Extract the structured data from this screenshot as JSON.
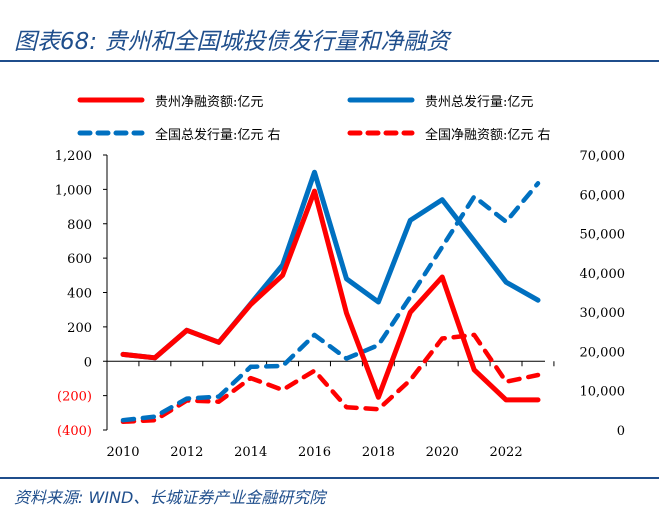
{
  "title": "图表68:  贵州和全国城投债发行量和净融资",
  "source": "资料来源: WIND、长城证券产业金融研究院",
  "chart_data": {
    "type": "line",
    "x": [
      2010,
      2011,
      2012,
      2013,
      2014,
      2015,
      2016,
      2017,
      2018,
      2019,
      2020,
      2021,
      2022,
      2023
    ],
    "xticks": [
      "2010",
      "2012",
      "2014",
      "2016",
      "2018",
      "2020",
      "2022"
    ],
    "left_ylim": [
      -400,
      1200
    ],
    "left_ticks": [
      "(400)",
      "(200)",
      "0",
      "200",
      "400",
      "600",
      "800",
      "1,000",
      "1,200"
    ],
    "right_ylim": [
      0,
      70000
    ],
    "right_ticks": [
      "0",
      "10,000",
      "20,000",
      "30,000",
      "40,000",
      "50,000",
      "60,000",
      "70,000"
    ],
    "legend_position": "top",
    "series": [
      {
        "name": "贵州净融资额:亿元",
        "axis": "left",
        "style": "solid",
        "color": "#ff0000",
        "values": [
          40,
          20,
          180,
          110,
          330,
          500,
          990,
          280,
          -210,
          285,
          490,
          -50,
          -225,
          -225
        ]
      },
      {
        "name": "贵州总发行量:亿元",
        "axis": "left",
        "style": "solid",
        "color": "#0070c0",
        "values": [
          40,
          20,
          180,
          110,
          335,
          560,
          1100,
          480,
          345,
          820,
          940,
          700,
          460,
          355
        ]
      },
      {
        "name": "全国总发行量:亿元 右",
        "axis": "right",
        "style": "dashed",
        "color": "#0070c0",
        "values": [
          2500,
          3400,
          8000,
          8500,
          16100,
          16300,
          24200,
          18200,
          21600,
          33900,
          46600,
          59400,
          53000,
          62800
        ]
      },
      {
        "name": "全国净融资额:亿元 右",
        "axis": "right",
        "style": "dashed",
        "color": "#ff0000",
        "values": [
          2100,
          2500,
          7500,
          7200,
          13200,
          10200,
          15100,
          5800,
          5300,
          12700,
          23300,
          24200,
          12300,
          14000
        ]
      }
    ]
  }
}
